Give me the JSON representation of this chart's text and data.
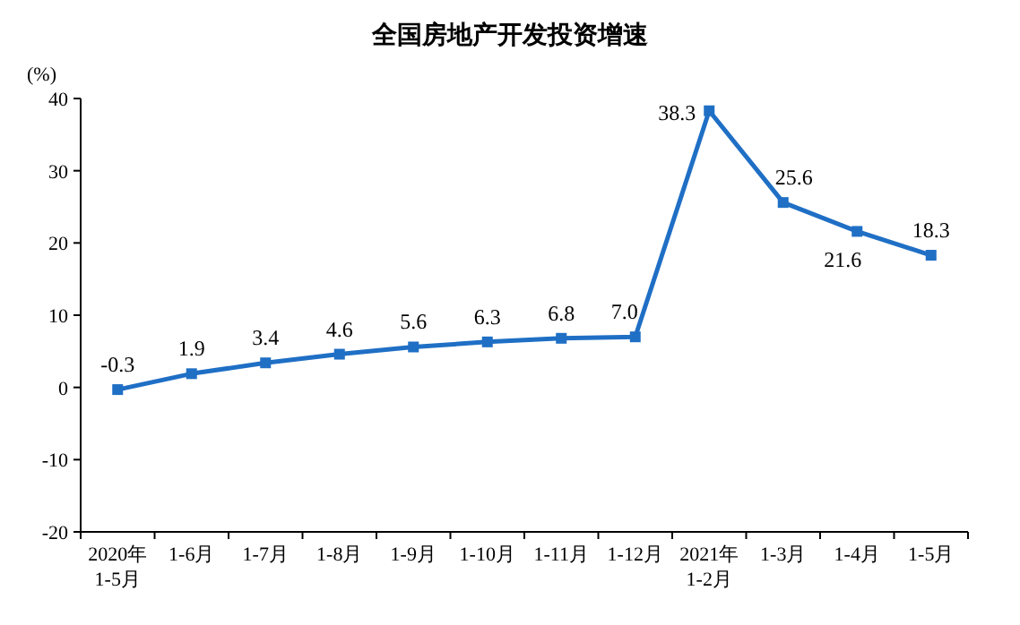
{
  "chart_data": {
    "type": "line",
    "title": "全国房地产开发投资增速",
    "ylabel": "(%)",
    "categories": [
      "2020年\n1-5月",
      "1-6月",
      "1-7月",
      "1-8月",
      "1-9月",
      "1-10月",
      "1-11月",
      "1-12月",
      "2021年\n1-2月",
      "1-3月",
      "1-4月",
      "1-5月"
    ],
    "series": [
      {
        "color": "#1f6fc5",
        "values": [
          -0.3,
          1.9,
          3.4,
          4.6,
          5.6,
          6.3,
          6.8,
          7.0,
          38.3,
          25.6,
          21.6,
          18.3
        ]
      }
    ],
    "value_labels": [
      "-0.3",
      "1.9",
      "3.4",
      "4.6",
      "5.6",
      "6.3",
      "6.8",
      "7.0",
      "38.3",
      "25.6",
      "21.6",
      "18.3"
    ],
    "ylim": [
      -20,
      40
    ],
    "yticks": [
      -20,
      -10,
      0,
      10,
      20,
      30,
      40
    ],
    "marker": "square",
    "grid": false
  }
}
